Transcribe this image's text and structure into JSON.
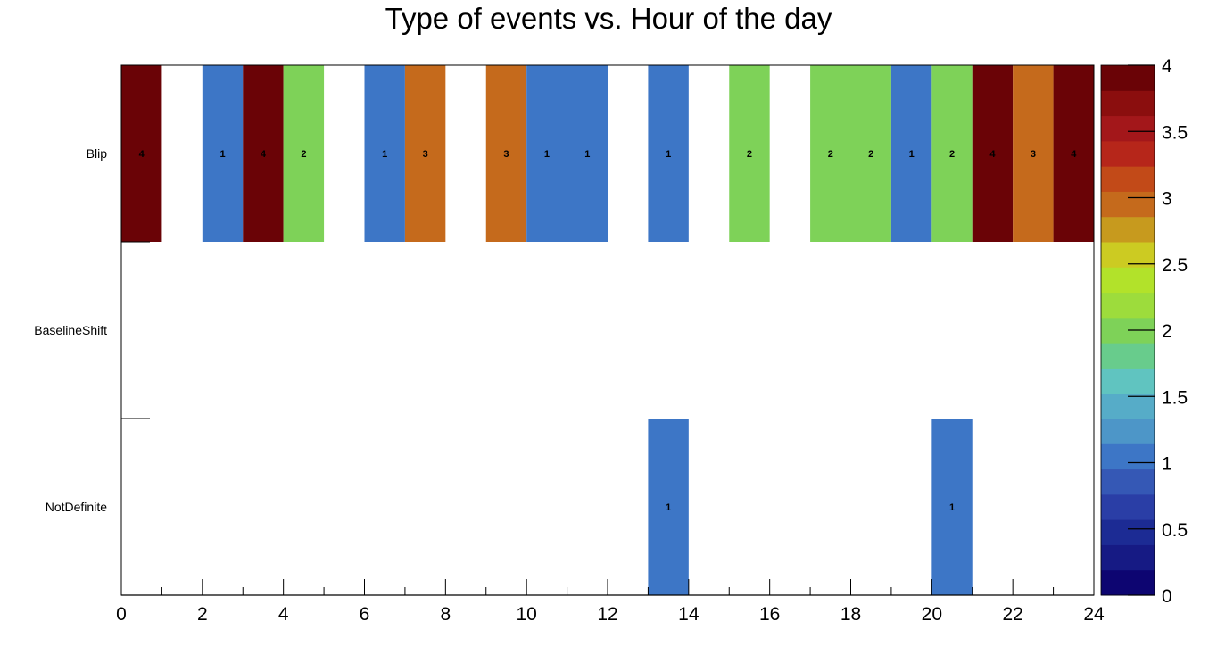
{
  "chart_data": {
    "type": "heatmap",
    "title": "Type of events vs. Hour of the day",
    "xlabel": "",
    "ylabel": "",
    "xlim": [
      0,
      24
    ],
    "x_ticks": [
      "0",
      "2",
      "4",
      "6",
      "8",
      "10",
      "12",
      "14",
      "16",
      "18",
      "20",
      "22",
      "24"
    ],
    "categories_y": [
      "Blip",
      "BaselineShift",
      "NotDefinite"
    ],
    "zlim": [
      0,
      4
    ],
    "z_ticks": [
      "0",
      "0.5",
      "1",
      "1.5",
      "2",
      "2.5",
      "3",
      "3.5",
      "4"
    ],
    "cells": [
      {
        "hour": 0,
        "type": "Blip",
        "count": 4,
        "label": "4"
      },
      {
        "hour": 2,
        "type": "Blip",
        "count": 1,
        "label": "1"
      },
      {
        "hour": 3,
        "type": "Blip",
        "count": 4,
        "label": "4"
      },
      {
        "hour": 4,
        "type": "Blip",
        "count": 2,
        "label": "2"
      },
      {
        "hour": 6,
        "type": "Blip",
        "count": 1,
        "label": "1"
      },
      {
        "hour": 7,
        "type": "Blip",
        "count": 3,
        "label": "3"
      },
      {
        "hour": 9,
        "type": "Blip",
        "count": 3,
        "label": "3"
      },
      {
        "hour": 10,
        "type": "Blip",
        "count": 1,
        "label": "1"
      },
      {
        "hour": 11,
        "type": "Blip",
        "count": 1,
        "label": "1"
      },
      {
        "hour": 13,
        "type": "Blip",
        "count": 1,
        "label": "1"
      },
      {
        "hour": 15,
        "type": "Blip",
        "count": 2,
        "label": "2"
      },
      {
        "hour": 17,
        "type": "Blip",
        "count": 2,
        "label": "2"
      },
      {
        "hour": 18,
        "type": "Blip",
        "count": 2,
        "label": "2"
      },
      {
        "hour": 19,
        "type": "Blip",
        "count": 1,
        "label": "1"
      },
      {
        "hour": 20,
        "type": "Blip",
        "count": 2,
        "label": "2"
      },
      {
        "hour": 21,
        "type": "Blip",
        "count": 4,
        "label": "4"
      },
      {
        "hour": 22,
        "type": "Blip",
        "count": 3,
        "label": "3"
      },
      {
        "hour": 23,
        "type": "Blip",
        "count": 4,
        "label": "4"
      },
      {
        "hour": 13,
        "type": "NotDefinite",
        "count": 1,
        "label": "1"
      },
      {
        "hour": 20,
        "type": "NotDefinite",
        "count": 1,
        "label": "1"
      }
    ],
    "palette": [
      "#0d0571",
      "#161a84",
      "#1c2b94",
      "#2a3ea6",
      "#3558b5",
      "#3d76c6",
      "#4d96c8",
      "#56acc8",
      "#60c4c0",
      "#68cc8c",
      "#7ed258",
      "#9ddc3c",
      "#b2e22a",
      "#cccb22",
      "#c79a1e",
      "#c56a1c",
      "#c24a18",
      "#b6261a",
      "#a3171a",
      "#8b0e0e",
      "#6a0306"
    ],
    "grid": false,
    "legend": "colorbar-right"
  }
}
